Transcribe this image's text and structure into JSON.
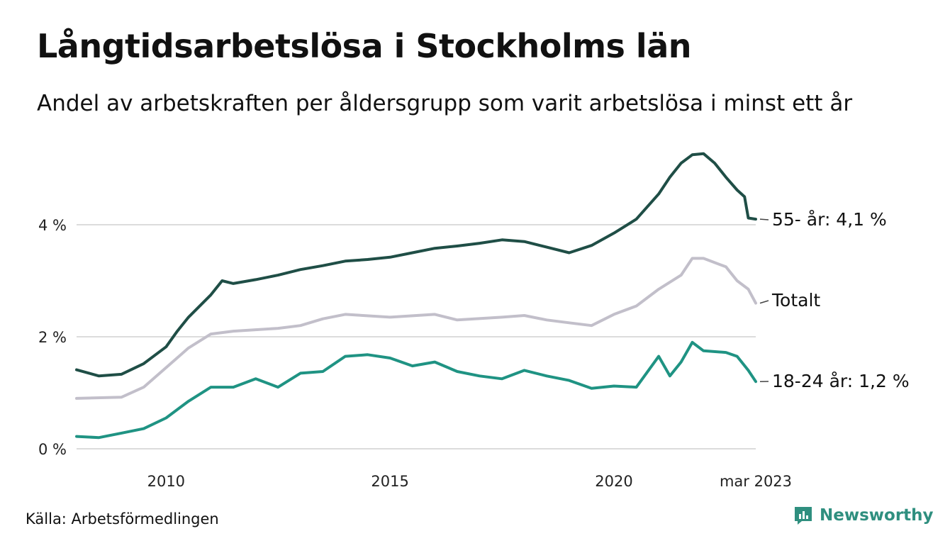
{
  "title": "Långtidsarbetslösa i Stockholms län",
  "subtitle": "Andel av arbetskraften per åldersgrupp som varit arbetslösa i minst ett år",
  "source": "Källa: Arbetsförmedlingen",
  "brand": {
    "name": "Newsworthy",
    "icon": "newsworthy-logo-icon",
    "color": "#2f8f7f"
  },
  "chart_data": {
    "type": "line",
    "ylim": [
      0,
      6
    ],
    "y_ticks": [
      0,
      2,
      4
    ],
    "y_tick_labels": [
      "0 %",
      "2 %",
      "4 %"
    ],
    "x_tick_labels": [
      {
        "x": "2010-01",
        "label": "2010"
      },
      {
        "x": "2015-01",
        "label": "2015"
      },
      {
        "x": "2020-01",
        "label": "2020"
      },
      {
        "x": "2023-03",
        "label": "mar 2023"
      }
    ],
    "grid": "horizontal",
    "legend": "line-end labels",
    "series": [
      {
        "name": "55- år",
        "end_label": "55- år: 4,1 %",
        "color": "#1f4e46",
        "points": [
          [
            "2008-01",
            1.41
          ],
          [
            "2008-07",
            1.3
          ],
          [
            "2009-01",
            1.33
          ],
          [
            "2009-07",
            1.52
          ],
          [
            "2010-01",
            1.82
          ],
          [
            "2010-04",
            2.1
          ],
          [
            "2010-07",
            2.35
          ],
          [
            "2011-01",
            2.75
          ],
          [
            "2011-04",
            3.0
          ],
          [
            "2011-07",
            2.95
          ],
          [
            "2012-01",
            3.02
          ],
          [
            "2012-07",
            3.1
          ],
          [
            "2013-01",
            3.2
          ],
          [
            "2013-07",
            3.27
          ],
          [
            "2014-01",
            3.35
          ],
          [
            "2014-07",
            3.38
          ],
          [
            "2015-01",
            3.42
          ],
          [
            "2015-07",
            3.5
          ],
          [
            "2016-01",
            3.58
          ],
          [
            "2016-07",
            3.62
          ],
          [
            "2017-01",
            3.67
          ],
          [
            "2017-07",
            3.73
          ],
          [
            "2018-01",
            3.7
          ],
          [
            "2018-07",
            3.6
          ],
          [
            "2019-01",
            3.5
          ],
          [
            "2019-07",
            3.63
          ],
          [
            "2020-01",
            3.85
          ],
          [
            "2020-07",
            4.1
          ],
          [
            "2021-01",
            4.55
          ],
          [
            "2021-04",
            4.85
          ],
          [
            "2021-07",
            5.1
          ],
          [
            "2021-10",
            5.25
          ],
          [
            "2022-01",
            5.27
          ],
          [
            "2022-04",
            5.1
          ],
          [
            "2022-07",
            4.85
          ],
          [
            "2022-10",
            4.62
          ],
          [
            "2022-12",
            4.5
          ],
          [
            "2023-01",
            4.12
          ],
          [
            "2023-03",
            4.1
          ]
        ]
      },
      {
        "name": "Totalt",
        "end_label": "Totalt",
        "color": "#c2bfca",
        "points": [
          [
            "2008-01",
            0.9
          ],
          [
            "2009-01",
            0.92
          ],
          [
            "2009-07",
            1.1
          ],
          [
            "2010-01",
            1.45
          ],
          [
            "2010-07",
            1.8
          ],
          [
            "2011-01",
            2.05
          ],
          [
            "2011-07",
            2.1
          ],
          [
            "2012-07",
            2.15
          ],
          [
            "2013-01",
            2.2
          ],
          [
            "2013-07",
            2.32
          ],
          [
            "2014-01",
            2.4
          ],
          [
            "2015-01",
            2.35
          ],
          [
            "2016-01",
            2.4
          ],
          [
            "2016-07",
            2.3
          ],
          [
            "2017-07",
            2.35
          ],
          [
            "2018-01",
            2.38
          ],
          [
            "2018-07",
            2.3
          ],
          [
            "2019-01",
            2.25
          ],
          [
            "2019-07",
            2.2
          ],
          [
            "2020-01",
            2.4
          ],
          [
            "2020-07",
            2.55
          ],
          [
            "2021-01",
            2.85
          ],
          [
            "2021-07",
            3.1
          ],
          [
            "2021-10",
            3.4
          ],
          [
            "2022-01",
            3.4
          ],
          [
            "2022-07",
            3.25
          ],
          [
            "2022-10",
            3.0
          ],
          [
            "2023-01",
            2.85
          ],
          [
            "2023-03",
            2.6
          ]
        ]
      },
      {
        "name": "18-24 år",
        "end_label": "18-24 år: 1,2 %",
        "color": "#1f9383",
        "points": [
          [
            "2008-01",
            0.22
          ],
          [
            "2008-07",
            0.2
          ],
          [
            "2009-01",
            0.28
          ],
          [
            "2009-07",
            0.36
          ],
          [
            "2010-01",
            0.55
          ],
          [
            "2010-07",
            0.85
          ],
          [
            "2011-01",
            1.1
          ],
          [
            "2011-07",
            1.1
          ],
          [
            "2012-01",
            1.25
          ],
          [
            "2012-07",
            1.1
          ],
          [
            "2013-01",
            1.35
          ],
          [
            "2013-07",
            1.38
          ],
          [
            "2014-01",
            1.65
          ],
          [
            "2014-07",
            1.68
          ],
          [
            "2015-01",
            1.62
          ],
          [
            "2015-07",
            1.48
          ],
          [
            "2016-01",
            1.55
          ],
          [
            "2016-07",
            1.38
          ],
          [
            "2017-01",
            1.3
          ],
          [
            "2017-07",
            1.25
          ],
          [
            "2018-01",
            1.4
          ],
          [
            "2018-07",
            1.3
          ],
          [
            "2019-01",
            1.22
          ],
          [
            "2019-07",
            1.08
          ],
          [
            "2020-01",
            1.12
          ],
          [
            "2020-07",
            1.1
          ],
          [
            "2021-01",
            1.65
          ],
          [
            "2021-04",
            1.3
          ],
          [
            "2021-07",
            1.55
          ],
          [
            "2021-10",
            1.9
          ],
          [
            "2022-01",
            1.75
          ],
          [
            "2022-07",
            1.72
          ],
          [
            "2022-10",
            1.65
          ],
          [
            "2023-01",
            1.4
          ],
          [
            "2023-03",
            1.2
          ]
        ]
      }
    ]
  }
}
